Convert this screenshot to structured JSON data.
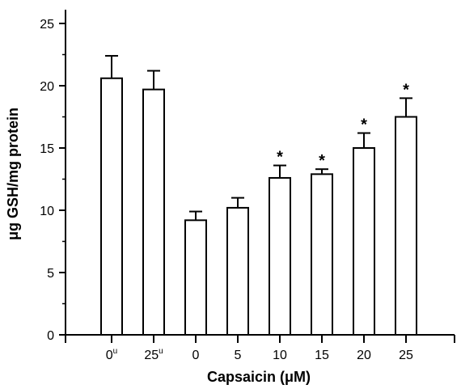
{
  "chart_data": {
    "type": "bar",
    "categories": [
      "0",
      "25",
      "0",
      "5",
      "10",
      "15",
      "20",
      "25"
    ],
    "category_superscripts": [
      "u",
      "u",
      "",
      "",
      "",
      "",
      "",
      ""
    ],
    "values": [
      20.6,
      19.7,
      9.2,
      10.2,
      12.6,
      12.9,
      15.0,
      17.5
    ],
    "errors": [
      1.8,
      1.5,
      0.7,
      0.8,
      1.0,
      0.4,
      1.2,
      1.5
    ],
    "significance": [
      "",
      "",
      "",
      "",
      "*",
      "*",
      "*",
      "*"
    ],
    "xlabel": "Capsaicin (μM)",
    "ylabel": "μg GSH/mg protein",
    "ylim": [
      0,
      25
    ],
    "yticks": [
      0,
      5,
      10,
      15,
      20,
      25
    ],
    "grid": false,
    "bar_fill": "#ffffff",
    "bar_stroke": "#000000"
  }
}
